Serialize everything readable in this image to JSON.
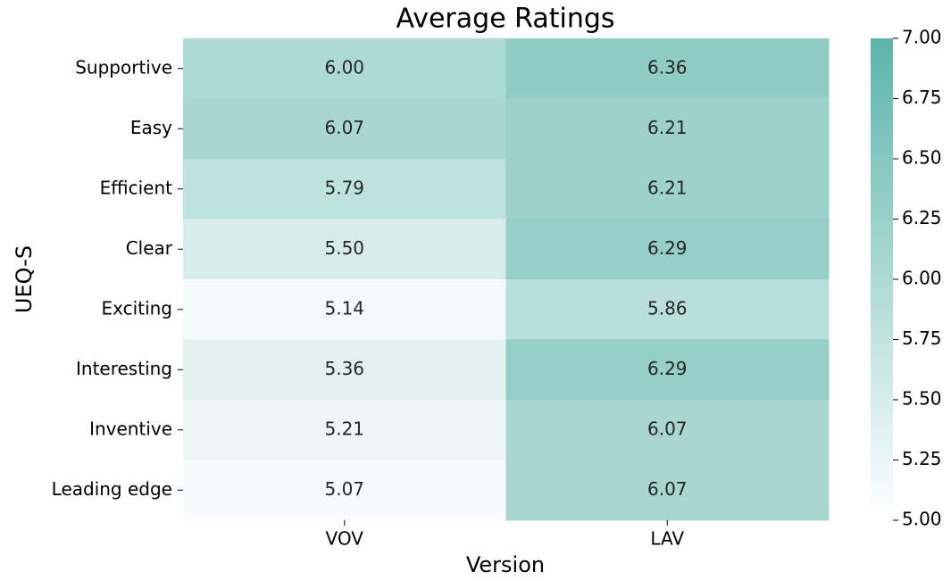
{
  "chart_data": {
    "type": "heatmap",
    "title": "Average Ratings",
    "xlabel": "Version",
    "ylabel": "UEQ-S",
    "x_categories": [
      "VOV",
      "LAV"
    ],
    "y_categories": [
      "Supportive",
      "Easy",
      "Efficient",
      "Clear",
      "Exciting",
      "Interesting",
      "Inventive",
      "Leading edge"
    ],
    "values": [
      [
        6.0,
        6.36
      ],
      [
        6.07,
        6.21
      ],
      [
        5.79,
        6.21
      ],
      [
        5.5,
        6.29
      ],
      [
        5.14,
        5.86
      ],
      [
        5.36,
        6.29
      ],
      [
        5.21,
        6.07
      ],
      [
        5.07,
        6.07
      ]
    ],
    "value_labels": [
      [
        "6.00",
        "6.36"
      ],
      [
        "6.07",
        "6.21"
      ],
      [
        "5.79",
        "6.21"
      ],
      [
        "5.50",
        "6.29"
      ],
      [
        "5.14",
        "5.86"
      ],
      [
        "5.36",
        "6.29"
      ],
      [
        "5.21",
        "6.07"
      ],
      [
        "5.07",
        "6.07"
      ]
    ],
    "cmap": [
      "#ffffff",
      "#5bb5a8"
    ],
    "clim": [
      5,
      7
    ],
    "cticks": [
      {
        "value": 5,
        "label": "5.00"
      },
      {
        "value": 5.25,
        "label": "5.25"
      },
      {
        "value": 5.5,
        "label": "5.50"
      },
      {
        "value": 5.75,
        "label": "5.75"
      },
      {
        "value": 6,
        "label": "6.00"
      },
      {
        "value": 6.25,
        "label": "6.25"
      },
      {
        "value": 6.5,
        "label": "6.50"
      },
      {
        "value": 6.75,
        "label": "6.75"
      },
      {
        "value": 7,
        "label": "7.00"
      }
    ]
  }
}
